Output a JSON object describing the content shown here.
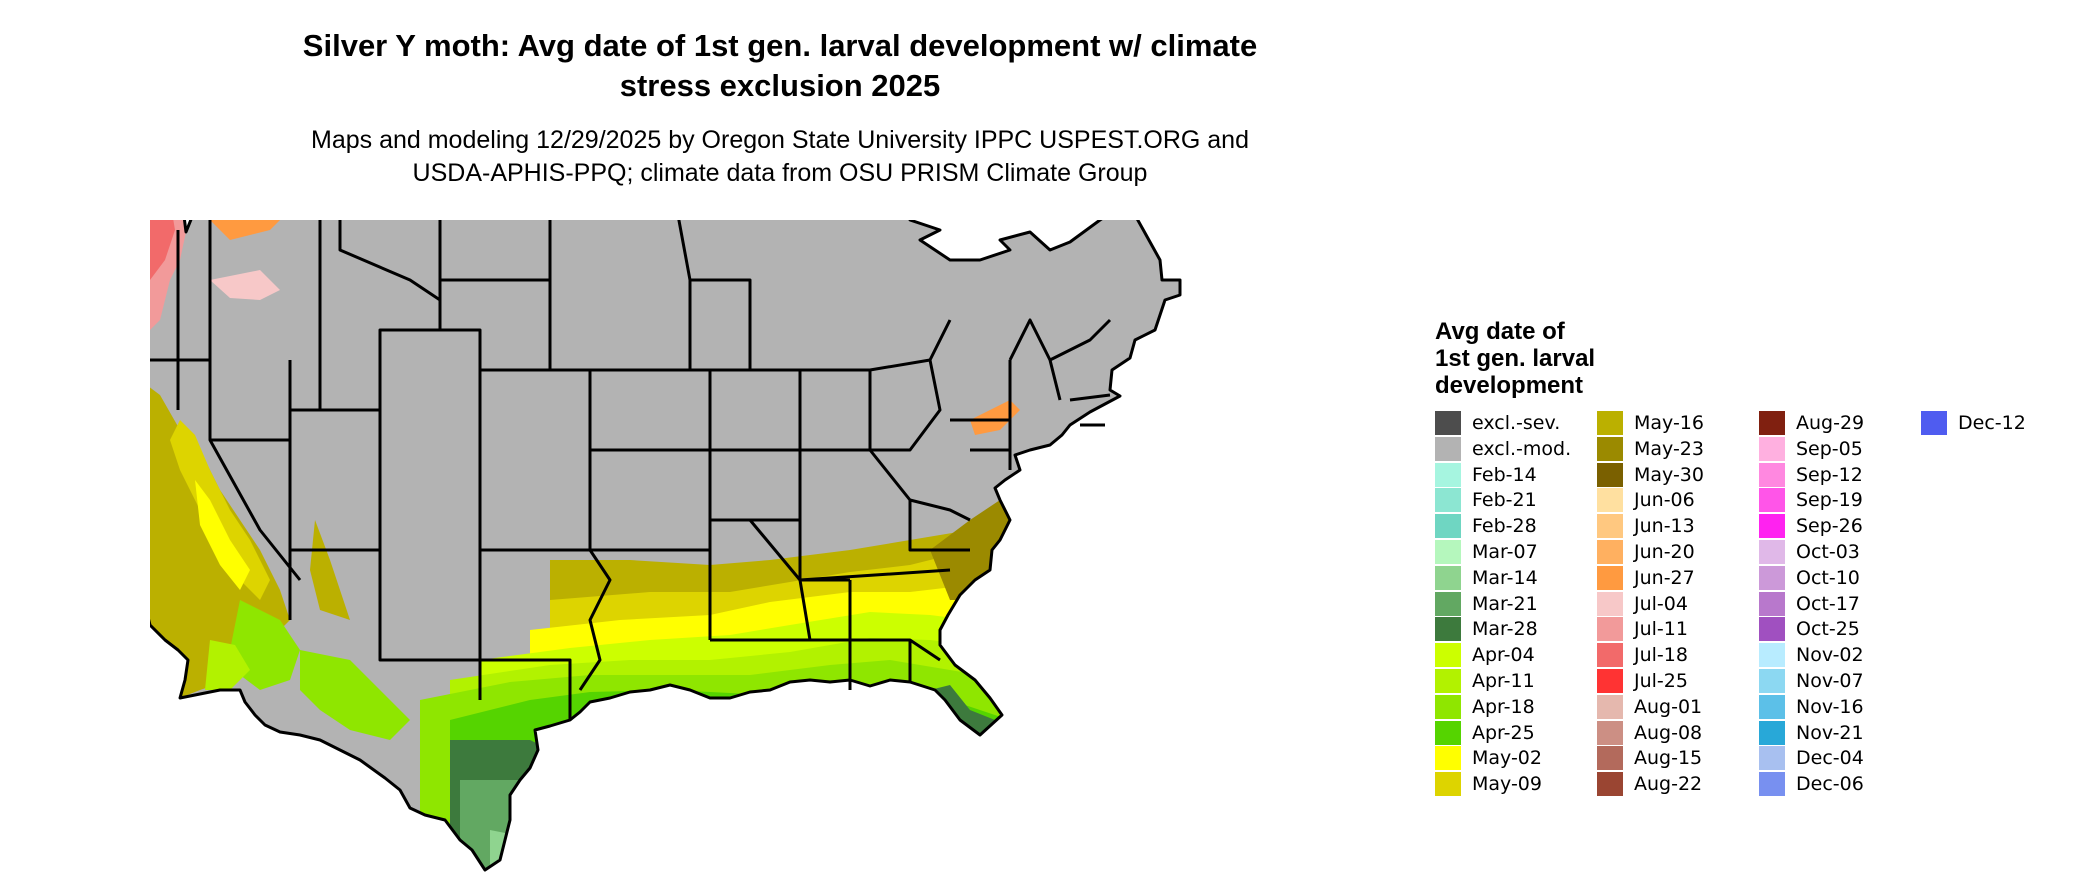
{
  "title_line1": "Silver Y moth: Avg date of 1st gen. larval development w/ climate",
  "title_line2": "stress exclusion 2025",
  "subtitle_line1": "Maps and modeling 12/29/2025 by Oregon State University IPPC USPEST.ORG and",
  "subtitle_line2": "USDA-APHIS-PPQ; climate data from OSU PRISM Climate Group",
  "legend": {
    "title_line1": "Avg date of",
    "title_line2": "1st gen. larval",
    "title_line3": "development",
    "items": [
      {
        "label": "excl.-sev.",
        "color": "#4d4d4d"
      },
      {
        "label": "excl.-mod.",
        "color": "#b3b3b3"
      },
      {
        "label": "Feb-14",
        "color": "#a6f5e0"
      },
      {
        "label": "Feb-21",
        "color": "#8ce6d2"
      },
      {
        "label": "Feb-28",
        "color": "#6fd6c2"
      },
      {
        "label": "Mar-07",
        "color": "#b5f7bd"
      },
      {
        "label": "Mar-14",
        "color": "#8fd48f"
      },
      {
        "label": "Mar-21",
        "color": "#62a862"
      },
      {
        "label": "Mar-28",
        "color": "#3d7a3d"
      },
      {
        "label": "Apr-04",
        "color": "#ccff00"
      },
      {
        "label": "Apr-11",
        "color": "#b2f200"
      },
      {
        "label": "Apr-18",
        "color": "#8fe600"
      },
      {
        "label": "Apr-25",
        "color": "#55d400"
      },
      {
        "label": "May-02",
        "color": "#ffff00"
      },
      {
        "label": "May-09",
        "color": "#ddd400"
      },
      {
        "label": "May-16",
        "color": "#bbb000"
      },
      {
        "label": "May-23",
        "color": "#9b8a00"
      },
      {
        "label": "May-30",
        "color": "#7a6000"
      },
      {
        "label": "Jun-06",
        "color": "#ffe0a0"
      },
      {
        "label": "Jun-13",
        "color": "#ffc880"
      },
      {
        "label": "Jun-20",
        "color": "#ffb060"
      },
      {
        "label": "Jun-27",
        "color": "#ff9a40"
      },
      {
        "label": "Jul-04",
        "color": "#f7c8c8"
      },
      {
        "label": "Jul-11",
        "color": "#f29a9a"
      },
      {
        "label": "Jul-18",
        "color": "#f26a6a"
      },
      {
        "label": "Jul-25",
        "color": "#ff3333"
      },
      {
        "label": "Aug-01",
        "color": "#e5b8ae"
      },
      {
        "label": "Aug-08",
        "color": "#cc8f84"
      },
      {
        "label": "Aug-15",
        "color": "#b36a5c"
      },
      {
        "label": "Aug-22",
        "color": "#9a4532"
      },
      {
        "label": "Aug-29",
        "color": "#802010"
      },
      {
        "label": "Sep-05",
        "color": "#ffb0e0"
      },
      {
        "label": "Sep-12",
        "color": "#ff88e0"
      },
      {
        "label": "Sep-19",
        "color": "#ff55e8"
      },
      {
        "label": "Sep-26",
        "color": "#ff22f0"
      },
      {
        "label": "Oct-03",
        "color": "#e0b8e8"
      },
      {
        "label": "Oct-10",
        "color": "#cc99d9"
      },
      {
        "label": "Oct-17",
        "color": "#b878cc"
      },
      {
        "label": "Oct-25",
        "color": "#a050c0"
      },
      {
        "label": "Nov-02",
        "color": "#b8ecff"
      },
      {
        "label": "Nov-07",
        "color": "#8cd8f2"
      },
      {
        "label": "Nov-16",
        "color": "#5cc0e8"
      },
      {
        "label": "Nov-21",
        "color": "#28a8d8"
      },
      {
        "label": "Dec-04",
        "color": "#a8c0f0"
      },
      {
        "label": "Dec-06",
        "color": "#7890f0"
      },
      {
        "label": "Dec-12",
        "color": "#4f5cf0"
      }
    ]
  },
  "map_colors": {
    "excluded": "#b3b3b3",
    "excluded_severe": "#4d4d4d",
    "state_border": "#000000"
  }
}
